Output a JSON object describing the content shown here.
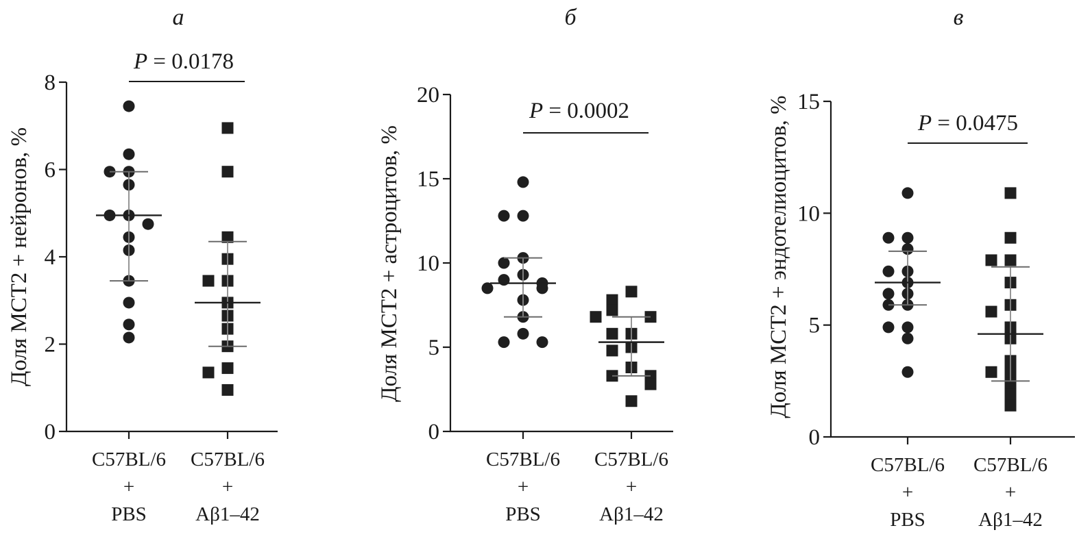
{
  "chart_data": [
    {
      "panel": "а",
      "type": "scatter",
      "ylabel": "Доля МСТ2 + нейронов, %",
      "ylim": [
        0,
        8
      ],
      "yticks": [
        0,
        2,
        4,
        6,
        8
      ],
      "categories": [
        {
          "lines": [
            "C57BL/6",
            "+",
            "PBS"
          ]
        },
        {
          "lines": [
            "C57BL/6",
            "+",
            "Aβ1–42"
          ]
        }
      ],
      "series": [
        {
          "marker": "circle",
          "mean": 4.95,
          "sd_low": 3.45,
          "sd_high": 5.95,
          "values": [
            7.45,
            6.35,
            5.95,
            5.95,
            5.65,
            4.95,
            4.95,
            4.75,
            4.45,
            4.15,
            3.45,
            2.95,
            2.45,
            2.15
          ]
        },
        {
          "marker": "square",
          "mean": 2.95,
          "sd_low": 1.95,
          "sd_high": 4.35,
          "values": [
            6.95,
            5.95,
            4.45,
            3.95,
            3.45,
            3.45,
            2.95,
            2.65,
            2.35,
            1.95,
            1.45,
            1.35,
            0.95
          ]
        }
      ],
      "significance": "P = 0.0178"
    },
    {
      "panel": "б",
      "type": "scatter",
      "ylabel": "Доля МСТ2 + астроцитов, %",
      "ylim": [
        0,
        20
      ],
      "yticks": [
        0,
        5,
        10,
        15,
        20
      ],
      "categories": [
        {
          "lines": [
            "C57BL/6",
            "+",
            "PBS"
          ]
        },
        {
          "lines": [
            "C57BL/6",
            "+",
            "Aβ1–42"
          ]
        }
      ],
      "series": [
        {
          "marker": "circle",
          "mean": 8.8,
          "sd_low": 6.8,
          "sd_high": 10.3,
          "values": [
            14.8,
            12.8,
            12.8,
            10.3,
            10.0,
            9.3,
            9.0,
            8.8,
            8.5,
            8.5,
            7.8,
            6.8,
            5.8,
            5.3,
            5.3
          ]
        },
        {
          "marker": "square",
          "mean": 5.3,
          "sd_low": 3.3,
          "sd_high": 6.8,
          "values": [
            8.3,
            7.8,
            7.3,
            7.2,
            6.8,
            6.8,
            5.8,
            5.8,
            5.0,
            4.8,
            3.8,
            3.3,
            3.3,
            2.8,
            1.8
          ]
        }
      ],
      "significance": "P = 0.0002"
    },
    {
      "panel": "в",
      "type": "scatter",
      "ylabel": "Доля МСТ2 + эндотелиоцитов, %",
      "ylim": [
        0,
        15
      ],
      "yticks": [
        0,
        5,
        10,
        15
      ],
      "categories": [
        {
          "lines": [
            "C57BL/6",
            "+",
            "PBS"
          ]
        },
        {
          "lines": [
            "C57BL/6",
            "+",
            "Aβ1–42"
          ]
        }
      ],
      "series": [
        {
          "marker": "circle",
          "mean": 6.9,
          "sd_low": 5.9,
          "sd_high": 8.3,
          "values": [
            10.9,
            8.9,
            8.9,
            8.4,
            7.4,
            7.4,
            6.9,
            6.4,
            6.4,
            5.9,
            5.9,
            4.9,
            4.9,
            4.4,
            2.9
          ]
        },
        {
          "marker": "square",
          "mean": 4.6,
          "sd_low": 2.5,
          "sd_high": 7.6,
          "values": [
            10.9,
            8.9,
            7.9,
            7.9,
            6.9,
            5.9,
            5.6,
            4.9,
            4.4,
            3.4,
            2.9,
            2.9,
            2.4,
            1.9,
            1.4
          ]
        }
      ],
      "significance": "P = 0.0475"
    }
  ]
}
